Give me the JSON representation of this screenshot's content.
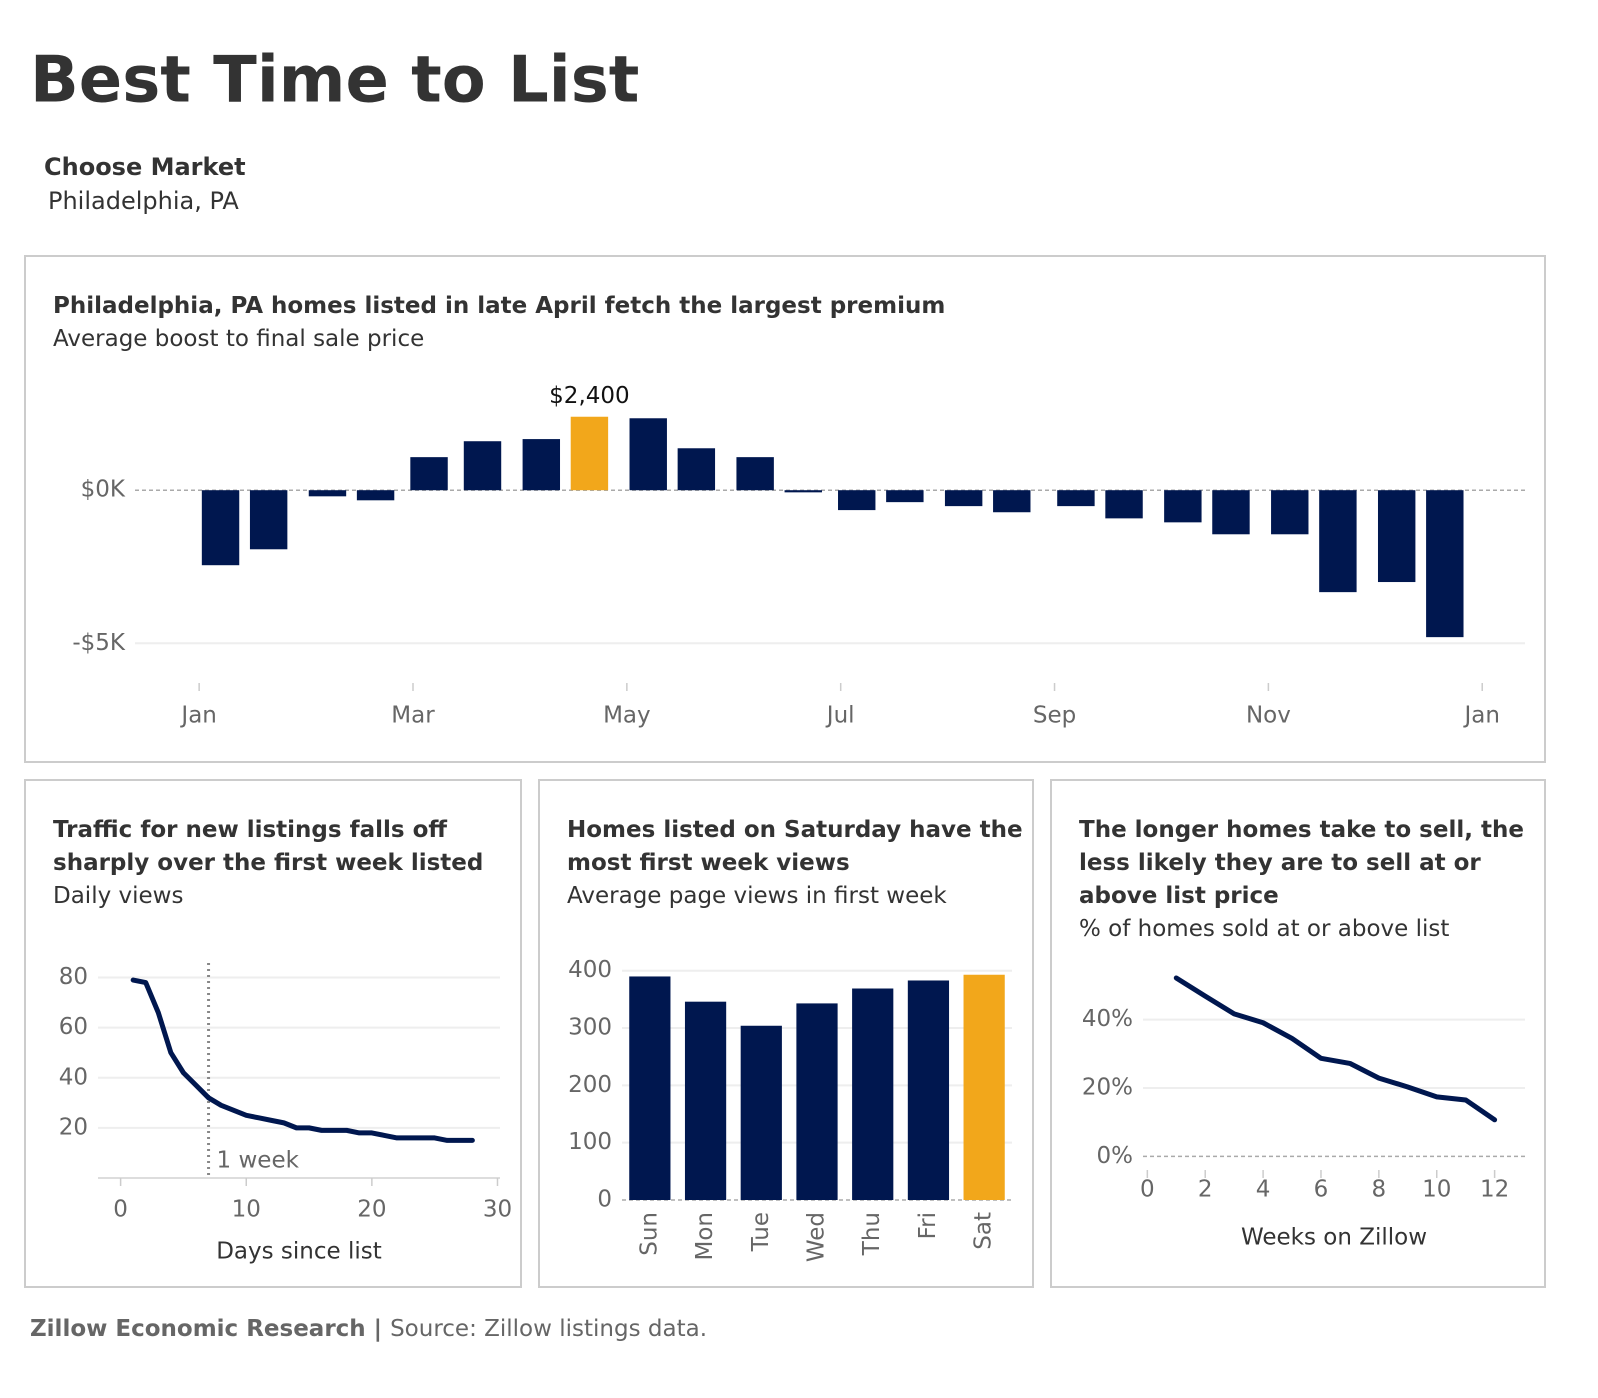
{
  "header": {
    "title": "Best Time to List",
    "selector_label": "Choose Market",
    "selector_value": "Philadelphia, PA"
  },
  "chart_data": [
    {
      "type": "bar",
      "title": "Philadelphia, PA homes listed in late April fetch the largest premium",
      "subtitle": "Average boost to final sale price",
      "x": [
        0.2,
        0.65,
        1.2,
        1.65,
        2.15,
        2.65,
        3.2,
        3.65,
        4.2,
        4.65,
        5.2,
        5.65,
        6.15,
        6.6,
        7.15,
        7.6,
        8.2,
        8.65,
        9.2,
        9.65,
        10.2,
        10.65,
        11.2,
        11.65
      ],
      "values": [
        -2.45,
        -1.93,
        -0.2,
        -0.33,
        1.08,
        1.6,
        1.67,
        2.4,
        2.35,
        1.37,
        1.08,
        -0.07,
        -0.65,
        -0.39,
        -0.52,
        -0.72,
        -0.52,
        -0.92,
        -1.05,
        -1.44,
        -1.44,
        -3.33,
        -3.0,
        -4.8
      ],
      "value_labels": [
        null,
        null,
        null,
        null,
        null,
        null,
        null,
        "$2,400",
        null,
        null,
        null,
        null,
        null,
        null,
        null,
        null,
        null,
        null,
        null,
        null,
        null,
        null,
        null,
        null
      ],
      "colors": [
        "#00174f",
        "#00174f",
        "#00174f",
        "#00174f",
        "#00174f",
        "#00174f",
        "#00174f",
        "#f2a71b",
        "#00174f",
        "#00174f",
        "#00174f",
        "#00174f",
        "#00174f",
        "#00174f",
        "#00174f",
        "#00174f",
        "#00174f",
        "#00174f",
        "#00174f",
        "#00174f",
        "#00174f",
        "#00174f",
        "#00174f",
        "#00174f"
      ],
      "xlim": [
        -0.6,
        12.4
      ],
      "xticks": [
        {
          "value": 0,
          "label": "Jan"
        },
        {
          "value": 2,
          "label": "Mar"
        },
        {
          "value": 4,
          "label": "May"
        },
        {
          "value": 6,
          "label": "Jul"
        },
        {
          "value": 8,
          "label": "Sep"
        },
        {
          "value": 10,
          "label": "Nov"
        },
        {
          "value": 12,
          "label": "Jan"
        }
      ],
      "ylim": [
        -6.2,
        3.6
      ],
      "yticks": [
        {
          "value": 0,
          "label": "$0K"
        },
        {
          "value": -5,
          "label": "-$5K"
        }
      ],
      "grid": true
    },
    {
      "type": "line",
      "title": "Traffic for new listings falls off sharply over the first week listed",
      "subtitle": "Daily views",
      "xlabel": "Days since list",
      "x": [
        1,
        2,
        3,
        4,
        5,
        6,
        7,
        8,
        9,
        10,
        11,
        12,
        13,
        14,
        15,
        16,
        17,
        18,
        19,
        20,
        21,
        22,
        23,
        24,
        25,
        26,
        27,
        28
      ],
      "values": [
        79,
        78,
        66,
        50,
        42,
        37,
        32,
        29,
        27,
        25,
        24,
        23,
        22,
        20,
        20,
        19,
        19,
        19,
        18,
        18,
        17,
        16,
        16,
        16,
        16,
        15,
        15,
        15
      ],
      "color": "#00174f",
      "xlim": [
        -1.8,
        30.2
      ],
      "xticks": [
        0,
        10,
        20,
        30
      ],
      "ylim": [
        0,
        85
      ],
      "yticks": [
        20,
        40,
        60,
        80
      ],
      "grid": true,
      "annotation": {
        "x": 7,
        "text": "1 week"
      }
    },
    {
      "type": "bar",
      "title": "Homes listed on Saturday have the most first week views",
      "subtitle": "Average page views in first week",
      "categories": [
        "Sun",
        "Mon",
        "Tue",
        "Wed",
        "Thu",
        "Fri",
        "Sat"
      ],
      "values": [
        390,
        346,
        304,
        343,
        369,
        383,
        393
      ],
      "colors": [
        "#00174f",
        "#00174f",
        "#00174f",
        "#00174f",
        "#00174f",
        "#00174f",
        "#f2a71b"
      ],
      "ylim": [
        0,
        410
      ],
      "yticks": [
        0,
        100,
        200,
        300,
        400
      ],
      "grid": true
    },
    {
      "type": "line",
      "title": "The longer homes take to sell, the less likely they are to sell at or above list price",
      "subtitle": "% of homes sold at or above list",
      "xlabel": "Weeks on Zillow",
      "x": [
        1,
        2,
        3,
        4,
        5,
        6,
        7,
        8,
        9,
        10,
        11,
        12
      ],
      "values": [
        52.2,
        46.9,
        41.7,
        39.1,
        34.5,
        28.7,
        27.2,
        22.9,
        20.3,
        17.4,
        16.5,
        10.7
      ],
      "color": "#00174f",
      "xlim": [
        -0.15,
        13.05
      ],
      "xticks": [
        0,
        2,
        4,
        6,
        8,
        10,
        12
      ],
      "ylim": [
        -4,
        56
      ],
      "yticks": [
        {
          "value": 0,
          "label": "0%"
        },
        {
          "value": 20,
          "label": "20%"
        },
        {
          "value": 40,
          "label": "40%"
        }
      ],
      "grid": true
    }
  ],
  "footer": {
    "org": "Zillow Economic Research |",
    "source": "Source: Zillow listings data."
  }
}
